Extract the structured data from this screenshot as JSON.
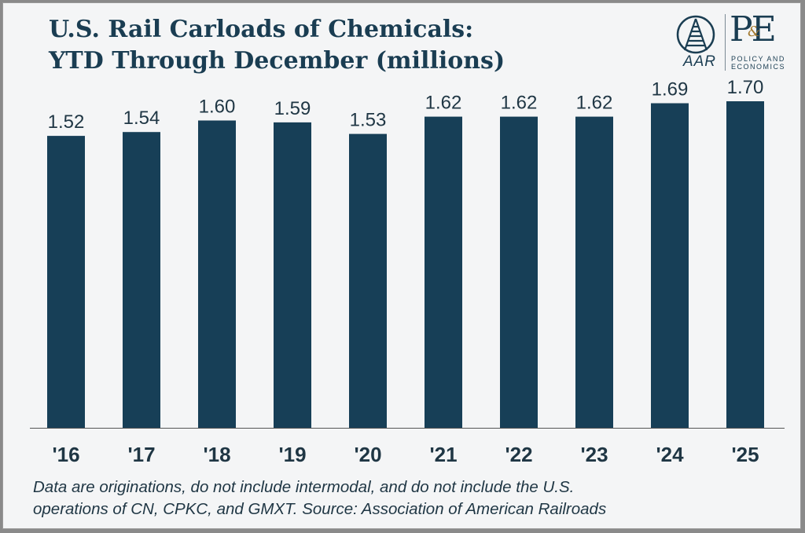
{
  "header": {
    "title_line1": "U.S. Rail Carloads of Chemicals:",
    "title_line2": "YTD Through December (millions)"
  },
  "logo": {
    "aar_text": "AAR",
    "pe_text": "PE",
    "amp_text": "&",
    "sub_line1": "POLICY AND",
    "sub_line2": "ECONOMICS"
  },
  "footnote": {
    "line1": "Data are originations, do not include intermodal, and do not include the U.S.",
    "line2": "operations of CN, CPKC, and GMXT. Source: Association of American Railroads"
  },
  "colors": {
    "bar": "#173f57",
    "title": "#1a3d52",
    "axis": "#555555"
  },
  "chart_data": {
    "type": "bar",
    "title": "U.S. Rail Carloads of Chemicals: YTD Through December (millions)",
    "categories": [
      "'16",
      "'17",
      "'18",
      "'19",
      "'20",
      "'21",
      "'22",
      "'23",
      "'24",
      "'25"
    ],
    "values": [
      1.52,
      1.54,
      1.6,
      1.59,
      1.53,
      1.62,
      1.62,
      1.62,
      1.69,
      1.7
    ],
    "value_labels": [
      "1.52",
      "1.54",
      "1.60",
      "1.59",
      "1.53",
      "1.62",
      "1.62",
      "1.62",
      "1.69",
      "1.70"
    ],
    "xlabel": "",
    "ylabel": "",
    "ylim": [
      0,
      2.0
    ],
    "grid": false,
    "legend": "none"
  }
}
